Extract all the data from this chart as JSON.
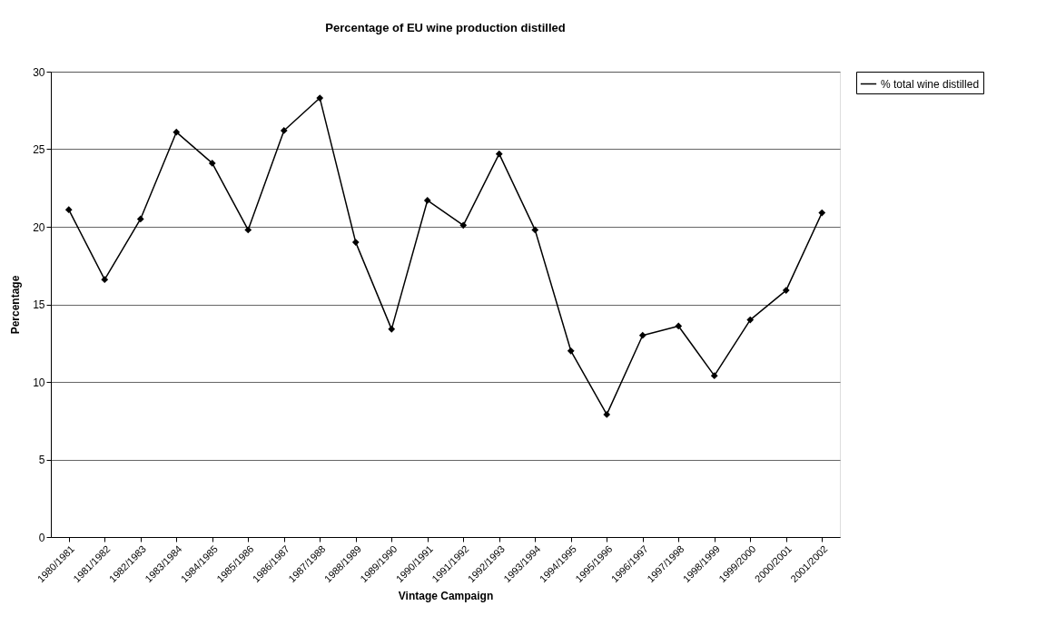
{
  "chart_data": {
    "type": "line",
    "title": "Percentage of EU wine production distilled",
    "xlabel": "Vintage Campaign",
    "ylabel": "Percentage",
    "categories": [
      "1980/1981",
      "1981/1982",
      "1982/1983",
      "1983/1984",
      "1984/1985",
      "1985/1986",
      "1986/1987",
      "1987/1988",
      "1988/1989",
      "1989/1990",
      "1990/1991",
      "1991/1992",
      "1992/1993",
      "1993/1994",
      "1994/1995",
      "1995/1996",
      "1996/1997",
      "1997/1998",
      "1998/1999",
      "1999/2000",
      "2000/2001",
      "2001/2002"
    ],
    "series": [
      {
        "name": "% total wine distilled",
        "color": "#000000",
        "values": [
          21.1,
          16.6,
          20.5,
          26.1,
          24.1,
          19.8,
          26.2,
          28.3,
          19.0,
          13.4,
          21.7,
          20.1,
          24.7,
          19.8,
          12.0,
          7.9,
          13.0,
          13.6,
          10.4,
          14.0,
          15.9,
          20.9
        ]
      }
    ],
    "ylim": [
      0,
      30
    ],
    "yticks": [
      0,
      5,
      10,
      15,
      20,
      25,
      30
    ],
    "grid": "y",
    "legend": "right",
    "marker": "diamond",
    "line_style": "solid"
  }
}
